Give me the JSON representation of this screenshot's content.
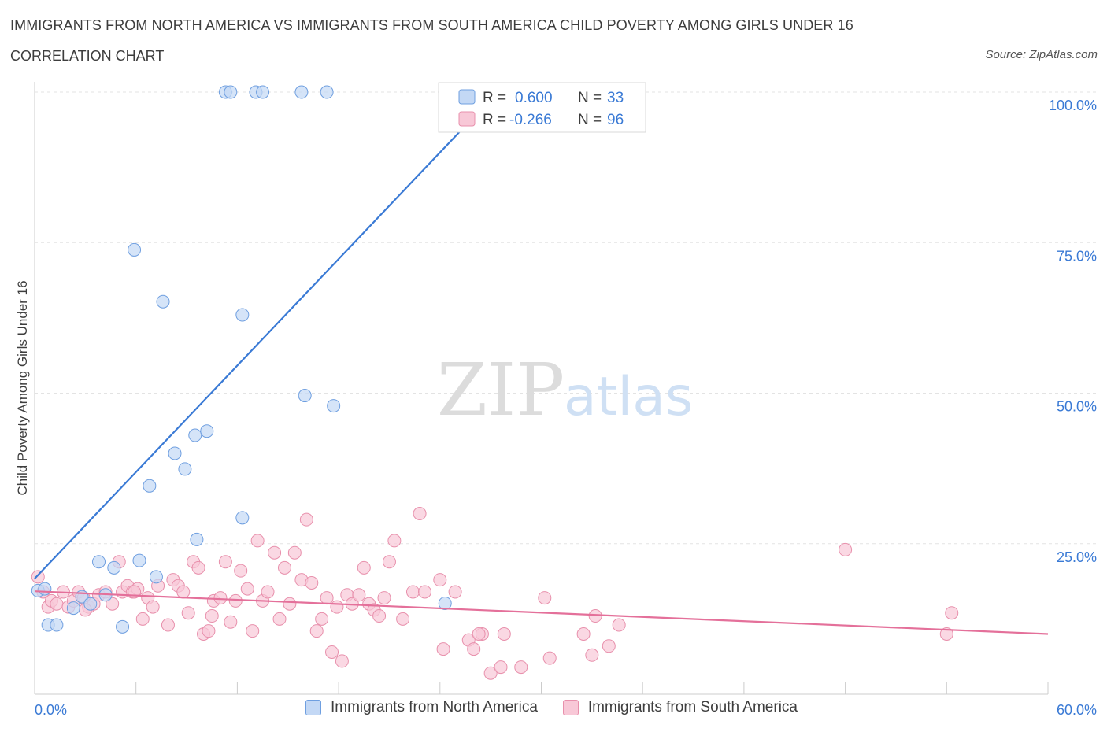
{
  "title": "IMMIGRANTS FROM NORTH AMERICA VS IMMIGRANTS FROM SOUTH AMERICA CHILD POVERTY AMONG GIRLS UNDER 16",
  "subtitle": "CORRELATION CHART",
  "source": "Source: ZipAtlas.com",
  "watermark": {
    "zip": "ZIP",
    "atlas": "atlas"
  },
  "colors": {
    "blue_fill": "#c3d8f5",
    "blue_stroke": "#6f9fe0",
    "blue_line": "#3a7ad5",
    "pink_fill": "#f8c8d7",
    "pink_stroke": "#e890ac",
    "pink_line": "#e4709a",
    "axis_text": "#3a7ad5",
    "grid": "#e3e3e3"
  },
  "legend": {
    "items": [
      {
        "r_label": "R =",
        "r_value": "0.600",
        "n_label": "N =",
        "n_value": "33"
      },
      {
        "r_label": "R =",
        "r_value": "-0.266",
        "n_label": "N =",
        "n_value": "96"
      }
    ]
  },
  "bottom_legend": [
    "Immigrants from North America",
    "Immigrants from South America"
  ],
  "chart_data": {
    "type": "scatter",
    "title": "IMMIGRANTS FROM NORTH AMERICA VS IMMIGRANTS FROM SOUTH AMERICA CHILD POVERTY AMONG GIRLS UNDER 16",
    "xlabel": "",
    "ylabel": "Child Poverty Among Girls Under 16",
    "xlim": [
      0,
      60
    ],
    "ylim": [
      0,
      100
    ],
    "x_tick_labels": [
      "0.0%",
      "60.0%"
    ],
    "y_tick_labels": [
      "100.0%",
      "75.0%",
      "50.0%",
      "25.0%"
    ],
    "y_ticks": [
      100,
      75,
      50,
      25
    ],
    "grid": true,
    "legend_position": "top-center",
    "series": [
      {
        "name": "Immigrants from North America",
        "color": "#6f9fe0",
        "trend": {
          "x": [
            0,
            27.4
          ],
          "y": [
            19.2,
            100
          ]
        },
        "points": [
          [
            0.2,
            17.2
          ],
          [
            0.8,
            11.5
          ],
          [
            1.3,
            11.5
          ],
          [
            2.3,
            14.3
          ],
          [
            2.8,
            16.2
          ],
          [
            3.3,
            15.0
          ],
          [
            3.8,
            22.0
          ],
          [
            4.2,
            16.5
          ],
          [
            4.7,
            21.0
          ],
          [
            5.2,
            11.2
          ],
          [
            5.9,
            73.8
          ],
          [
            6.2,
            22.2
          ],
          [
            6.8,
            34.6
          ],
          [
            7.2,
            19.5
          ],
          [
            7.6,
            65.2
          ],
          [
            8.3,
            40.0
          ],
          [
            8.9,
            37.4
          ],
          [
            9.5,
            43.0
          ],
          [
            10.2,
            43.7
          ],
          [
            9.6,
            25.7
          ],
          [
            11.3,
            100
          ],
          [
            11.6,
            100
          ],
          [
            12.3,
            29.3
          ],
          [
            12.3,
            63.0
          ],
          [
            13.1,
            100
          ],
          [
            13.5,
            100
          ],
          [
            15.8,
            100
          ],
          [
            16.0,
            49.6
          ],
          [
            17.3,
            100
          ],
          [
            17.7,
            47.9
          ],
          [
            24.3,
            15.1
          ],
          [
            33.0,
            100
          ],
          [
            0.6,
            17.5
          ]
        ]
      },
      {
        "name": "Immigrants from South America",
        "color": "#e890ac",
        "trend": {
          "x": [
            0,
            60
          ],
          "y": [
            17.1,
            10.0
          ]
        },
        "points": [
          [
            0.2,
            19.5
          ],
          [
            0.5,
            17.0
          ],
          [
            0.8,
            14.5
          ],
          [
            1.0,
            15.5
          ],
          [
            1.3,
            15.0
          ],
          [
            1.7,
            17.0
          ],
          [
            2.0,
            14.5
          ],
          [
            2.3,
            15.5
          ],
          [
            2.6,
            17.0
          ],
          [
            2.9,
            16.0
          ],
          [
            3.2,
            14.5
          ],
          [
            3.5,
            15.0
          ],
          [
            3.8,
            16.5
          ],
          [
            4.2,
            17.0
          ],
          [
            4.6,
            15.0
          ],
          [
            5.0,
            22.0
          ],
          [
            5.2,
            17.0
          ],
          [
            5.5,
            18.0
          ],
          [
            5.8,
            17.0
          ],
          [
            6.1,
            17.5
          ],
          [
            6.4,
            12.5
          ],
          [
            6.7,
            16.0
          ],
          [
            7.0,
            14.5
          ],
          [
            7.3,
            18.0
          ],
          [
            7.9,
            11.5
          ],
          [
            8.2,
            19.0
          ],
          [
            8.5,
            18.0
          ],
          [
            8.8,
            17.0
          ],
          [
            9.1,
            13.5
          ],
          [
            9.4,
            22.0
          ],
          [
            9.7,
            21.0
          ],
          [
            10.0,
            10.0
          ],
          [
            10.3,
            10.5
          ],
          [
            10.6,
            15.5
          ],
          [
            11.0,
            16.0
          ],
          [
            11.3,
            22.0
          ],
          [
            11.6,
            12.0
          ],
          [
            11.9,
            15.5
          ],
          [
            12.2,
            20.5
          ],
          [
            12.6,
            17.5
          ],
          [
            12.9,
            10.5
          ],
          [
            13.2,
            25.5
          ],
          [
            13.5,
            15.5
          ],
          [
            13.8,
            17.0
          ],
          [
            14.2,
            23.5
          ],
          [
            14.5,
            12.5
          ],
          [
            14.8,
            21.0
          ],
          [
            15.1,
            15.0
          ],
          [
            15.4,
            23.5
          ],
          [
            15.8,
            19.0
          ],
          [
            16.1,
            29.0
          ],
          [
            16.4,
            18.5
          ],
          [
            16.7,
            10.5
          ],
          [
            17.0,
            12.5
          ],
          [
            17.3,
            16.0
          ],
          [
            17.6,
            7.0
          ],
          [
            17.9,
            14.5
          ],
          [
            18.2,
            5.5
          ],
          [
            18.5,
            16.5
          ],
          [
            18.8,
            15.0
          ],
          [
            19.2,
            16.5
          ],
          [
            19.5,
            21.0
          ],
          [
            19.8,
            15.0
          ],
          [
            20.1,
            14.0
          ],
          [
            20.4,
            13.0
          ],
          [
            20.7,
            16.0
          ],
          [
            21.0,
            22.0
          ],
          [
            21.3,
            25.5
          ],
          [
            21.8,
            12.5
          ],
          [
            22.4,
            17.0
          ],
          [
            22.8,
            30.0
          ],
          [
            23.1,
            17.0
          ],
          [
            24.0,
            19.0
          ],
          [
            24.2,
            7.5
          ],
          [
            24.9,
            17.0
          ],
          [
            25.7,
            9.0
          ],
          [
            26.0,
            7.5
          ],
          [
            26.5,
            10.0
          ],
          [
            27.0,
            3.5
          ],
          [
            27.6,
            4.5
          ],
          [
            27.8,
            10.0
          ],
          [
            28.8,
            4.5
          ],
          [
            30.2,
            16.0
          ],
          [
            30.5,
            6.0
          ],
          [
            32.5,
            10.0
          ],
          [
            33.0,
            6.5
          ],
          [
            33.2,
            13.0
          ],
          [
            34.0,
            8.0
          ],
          [
            34.6,
            11.5
          ],
          [
            48.0,
            24.0
          ],
          [
            54.0,
            10.0
          ],
          [
            54.3,
            13.5
          ],
          [
            26.3,
            10.0
          ],
          [
            10.5,
            13.0
          ],
          [
            3.0,
            14.0
          ],
          [
            5.9,
            17.0
          ]
        ]
      }
    ]
  }
}
